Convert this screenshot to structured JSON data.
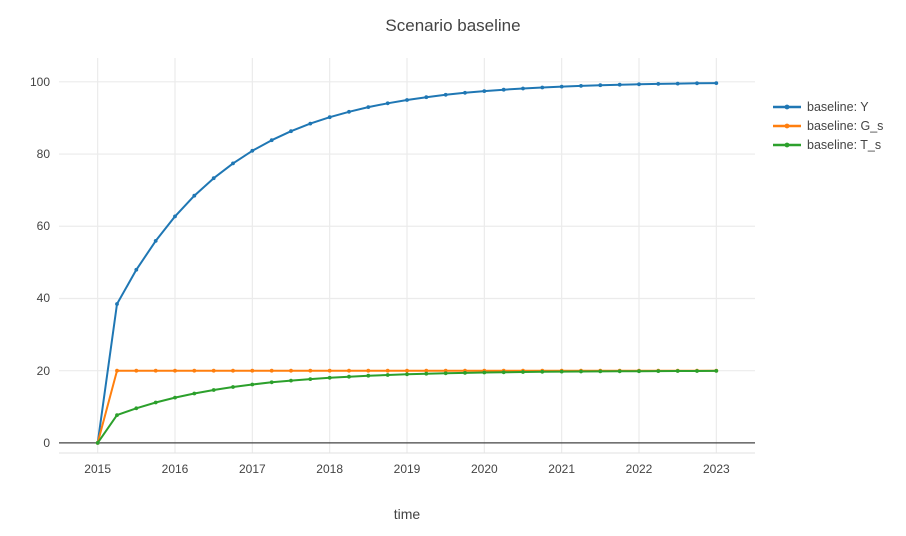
{
  "colors": {
    "background": "#ffffff",
    "text": "#444444",
    "grid": "#ebebeb",
    "zeroline": "#444444",
    "axis_line": "#e2e2e2",
    "series_blue": "#1f77b4",
    "series_orange": "#ff7f0e",
    "series_green": "#2ca02c"
  },
  "chart_data": {
    "type": "line",
    "title": "Scenario baseline",
    "xlabel": "time",
    "ylabel": "",
    "grid": true,
    "legend_position": "right",
    "marker_mode": "lines+markers",
    "x_range": [
      2014.5,
      2023.5
    ],
    "y_range": [
      -2.8,
      106.6
    ],
    "x_ticks": [
      2015,
      2016,
      2017,
      2018,
      2019,
      2020,
      2021,
      2022,
      2023
    ],
    "y_ticks": [
      0,
      20,
      40,
      60,
      80,
      100
    ],
    "x": [
      2015,
      2015.25,
      2015.5,
      2015.75,
      2016,
      2016.25,
      2016.5,
      2016.75,
      2017,
      2017.25,
      2017.5,
      2017.75,
      2018,
      2018.25,
      2018.5,
      2018.75,
      2019,
      2019.25,
      2019.5,
      2019.75,
      2020,
      2020.25,
      2020.5,
      2020.75,
      2021,
      2021.25,
      2021.5,
      2021.75,
      2022,
      2022.25,
      2022.5,
      2022.75,
      2023
    ],
    "series": [
      {
        "name": "baseline: Y",
        "color": "#1f77b4",
        "values": [
          0,
          38.46,
          47.93,
          55.94,
          62.72,
          68.45,
          73.31,
          77.41,
          80.89,
          83.83,
          86.32,
          88.42,
          90.2,
          91.71,
          92.99,
          94.06,
          94.98,
          95.75,
          96.4,
          96.96,
          97.43,
          97.82,
          98.16,
          98.44,
          98.68,
          98.88,
          99.06,
          99.2,
          99.32,
          99.43,
          99.52,
          99.59,
          99.65
        ]
      },
      {
        "name": "baseline: G_s",
        "color": "#ff7f0e",
        "values": [
          0,
          20,
          20,
          20,
          20,
          20,
          20,
          20,
          20,
          20,
          20,
          20,
          20,
          20,
          20,
          20,
          20,
          20,
          20,
          20,
          20,
          20,
          20,
          20,
          20,
          20,
          20,
          20,
          20,
          20,
          20,
          20,
          20
        ]
      },
      {
        "name": "baseline: T_s",
        "color": "#2ca02c",
        "values": [
          0,
          7.69,
          9.59,
          11.19,
          12.54,
          13.69,
          14.66,
          15.48,
          16.18,
          16.77,
          17.26,
          17.68,
          18.04,
          18.34,
          18.6,
          18.81,
          19,
          19.15,
          19.28,
          19.39,
          19.49,
          19.56,
          19.63,
          19.69,
          19.74,
          19.78,
          19.81,
          19.84,
          19.86,
          19.89,
          19.9,
          19.92,
          19.93
        ]
      }
    ]
  }
}
